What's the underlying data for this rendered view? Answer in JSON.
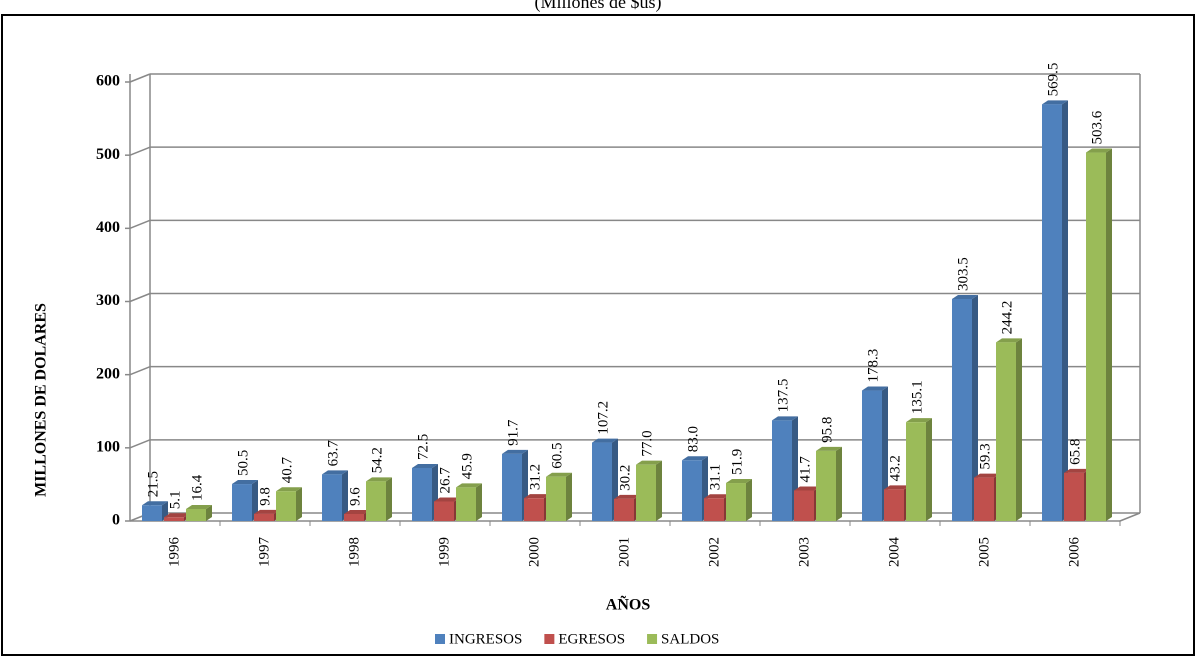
{
  "chart_data": {
    "type": "bar",
    "title": "(Millones de $us)",
    "x_label": "AÑOS",
    "y_label": "MILLONES DE DOLARES",
    "categories": [
      "1996",
      "1997",
      "1998",
      "1999",
      "2000",
      "2001",
      "2002",
      "2003",
      "2004",
      "2005",
      "2006"
    ],
    "series": [
      {
        "name": "INGRESOS",
        "color": "#4f81bd",
        "values": [
          21.5,
          50.5,
          63.7,
          72.5,
          91.7,
          107.2,
          83.0,
          137.5,
          178.3,
          303.5,
          569.5
        ],
        "value_labels": [
          "21.5",
          "50.5",
          "63.7",
          "72.5",
          "91.7",
          "107.2",
          "83.0",
          "137.5",
          "178.3",
          "303.5",
          "569.5"
        ]
      },
      {
        "name": "EGRESOS",
        "color": "#c0504d",
        "values": [
          5.1,
          9.8,
          9.6,
          26.7,
          31.2,
          30.2,
          31.1,
          41.7,
          43.2,
          59.3,
          65.8
        ],
        "value_labels": [
          "5.1",
          "9.8",
          "9.6",
          "26.7",
          "31.2",
          "30.2",
          "31.1",
          "41.7",
          "43.2",
          "59.3",
          "65.8"
        ]
      },
      {
        "name": "SALDOS",
        "color": "#9bbb59",
        "values": [
          16.4,
          40.7,
          54.2,
          45.9,
          60.5,
          77.0,
          51.9,
          95.8,
          135.1,
          244.2,
          503.6
        ],
        "value_labels": [
          "16.4",
          "40.7",
          "54.2",
          "45.9",
          "60.5",
          "77.0",
          "51.9",
          "95.8",
          "135.1",
          "244.2",
          "503.6"
        ]
      }
    ],
    "ylim": [
      0,
      600
    ],
    "yticks": [
      0,
      100,
      200,
      300,
      400,
      500,
      600
    ],
    "grid": true,
    "legend": "bottom"
  }
}
